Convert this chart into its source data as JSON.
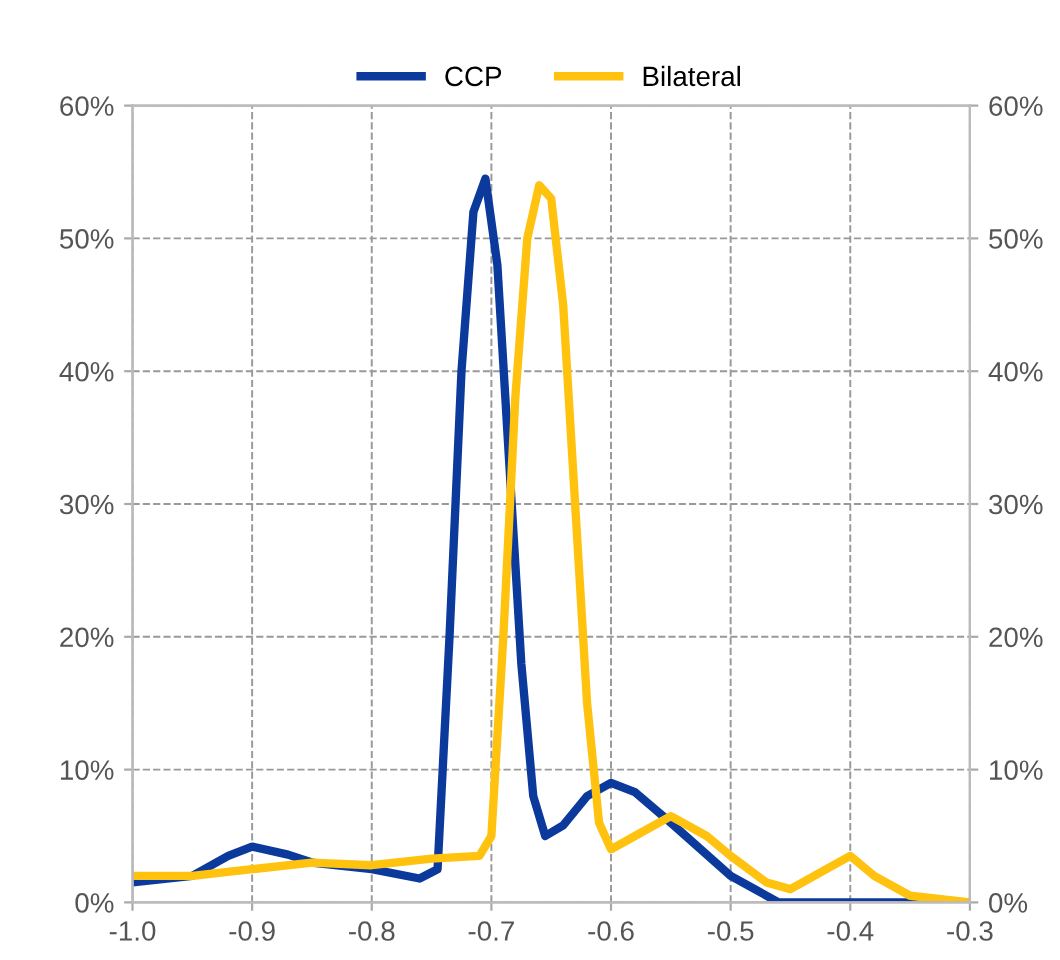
{
  "chart_data": {
    "type": "line",
    "series": [
      {
        "name": "CCP",
        "color": "#0b3a9c",
        "x": [
          -1.0,
          -0.95,
          -0.92,
          -0.9,
          -0.87,
          -0.85,
          -0.8,
          -0.76,
          -0.745,
          -0.735,
          -0.725,
          -0.715,
          -0.705,
          -0.695,
          -0.685,
          -0.675,
          -0.665,
          -0.655,
          -0.64,
          -0.62,
          -0.6,
          -0.58,
          -0.55,
          -0.5,
          -0.46,
          -0.3
        ],
        "values": [
          1.5,
          2,
          3.5,
          4.2,
          3.6,
          3,
          2.5,
          1.8,
          2.5,
          20,
          40,
          52,
          54.5,
          48,
          33,
          18,
          8,
          5,
          5.8,
          8,
          9,
          8.3,
          6,
          2,
          0,
          0
        ]
      },
      {
        "name": "Bilateral",
        "color": "#ffc20e",
        "x": [
          -1.0,
          -0.95,
          -0.9,
          -0.85,
          -0.8,
          -0.75,
          -0.71,
          -0.7,
          -0.69,
          -0.68,
          -0.67,
          -0.66,
          -0.65,
          -0.64,
          -0.63,
          -0.62,
          -0.61,
          -0.6,
          -0.58,
          -0.55,
          -0.52,
          -0.5,
          -0.47,
          -0.45,
          -0.42,
          -0.4,
          -0.38,
          -0.35,
          -0.3
        ],
        "values": [
          2,
          2,
          2.5,
          3,
          2.8,
          3.3,
          3.5,
          5,
          20,
          38,
          50,
          54,
          53,
          45,
          30,
          15,
          6,
          4,
          5,
          6.5,
          5,
          3.5,
          1.5,
          1,
          2.5,
          3.5,
          2,
          0.5,
          0
        ]
      }
    ],
    "xlim": [
      -1.0,
      -0.3
    ],
    "xticks": [
      {
        "value": -1.0,
        "label": "-1.0"
      },
      {
        "value": -0.9,
        "label": "-0.9"
      },
      {
        "value": -0.8,
        "label": "-0.8"
      },
      {
        "value": -0.7,
        "label": "-0.7"
      },
      {
        "value": -0.6,
        "label": "-0.6"
      },
      {
        "value": -0.5,
        "label": "-0.5"
      },
      {
        "value": -0.4,
        "label": "-0.4"
      },
      {
        "value": -0.3,
        "label": "-0.3"
      }
    ],
    "ylim": [
      0,
      60
    ],
    "yticks": [
      {
        "value": 0,
        "label": "0%"
      },
      {
        "value": 10,
        "label": "10%"
      },
      {
        "value": 20,
        "label": "20%"
      },
      {
        "value": 30,
        "label": "30%"
      },
      {
        "value": 40,
        "label": "40%"
      },
      {
        "value": 50,
        "label": "50%"
      },
      {
        "value": 60,
        "label": "60%"
      }
    ],
    "y2lim": [
      0,
      60
    ],
    "y2ticks": [
      {
        "value": 0,
        "label": "0%"
      },
      {
        "value": 10,
        "label": "10%"
      },
      {
        "value": 20,
        "label": "20%"
      },
      {
        "value": 30,
        "label": "30%"
      },
      {
        "value": 40,
        "label": "40%"
      },
      {
        "value": 50,
        "label": "50%"
      },
      {
        "value": 60,
        "label": "60%"
      }
    ],
    "grid": true,
    "legend": "top",
    "line_style": "solid"
  }
}
